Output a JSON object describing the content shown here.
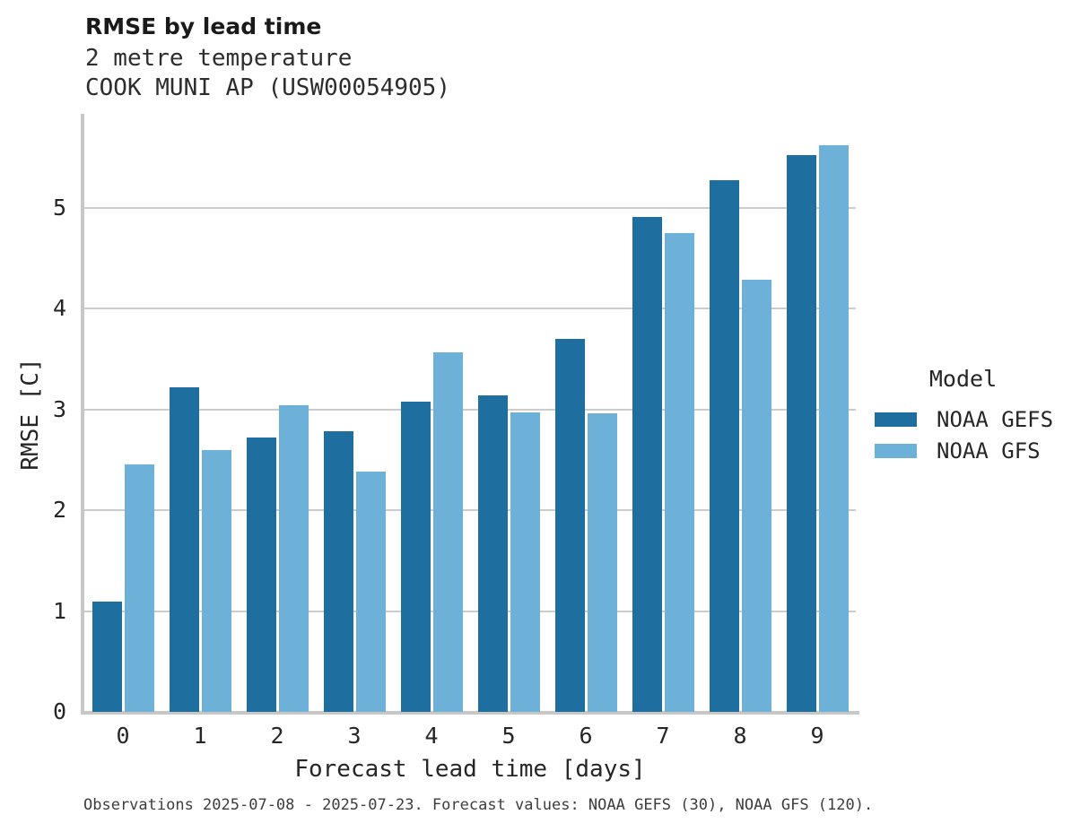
{
  "title": "RMSE by lead time",
  "subtitle": "2 metre temperature\nCOOK MUNI AP (USW00054905)",
  "footer": "Observations 2025-07-08 - 2025-07-23. Forecast values: NOAA GEFS (30), NOAA GFS (120).",
  "colors": {
    "noaa_gefs": "#1e6e9f",
    "noaa_gfs": "#6db1d9",
    "grid": "#cccccc",
    "spine": "#c7c7c7",
    "text": "#262626"
  },
  "legend": {
    "title": "Model",
    "entries": [
      {
        "label": "NOAA GEFS",
        "color": "#1e6e9f"
      },
      {
        "label": "NOAA GFS",
        "color": "#6db1d9"
      }
    ]
  },
  "chart_data": {
    "type": "bar",
    "title": "RMSE by lead time",
    "subtitle": [
      "2 metre temperature",
      "COOK MUNI AP (USW00054905)"
    ],
    "xlabel": "Forecast lead time [days]",
    "ylabel": "RMSE [C]",
    "categories": [
      "0",
      "1",
      "2",
      "3",
      "4",
      "5",
      "6",
      "7",
      "8",
      "9"
    ],
    "series": [
      {
        "name": "NOAA GEFS",
        "color": "#1e6e9f",
        "values": [
          1.09,
          3.22,
          2.72,
          2.78,
          3.08,
          3.14,
          3.7,
          4.91,
          5.27,
          5.52
        ]
      },
      {
        "name": "NOAA GFS",
        "color": "#6db1d9",
        "values": [
          2.45,
          2.6,
          3.04,
          2.38,
          3.57,
          2.97,
          2.96,
          4.75,
          4.29,
          5.62
        ]
      }
    ],
    "ylim": [
      0,
      5.93
    ],
    "yticks": [
      0,
      1,
      2,
      3,
      4,
      5
    ],
    "grid": "horizontal",
    "legend_position": "right",
    "caption": "Observations 2025-07-08 - 2025-07-23. Forecast values: NOAA GEFS (30), NOAA GFS (120)."
  }
}
